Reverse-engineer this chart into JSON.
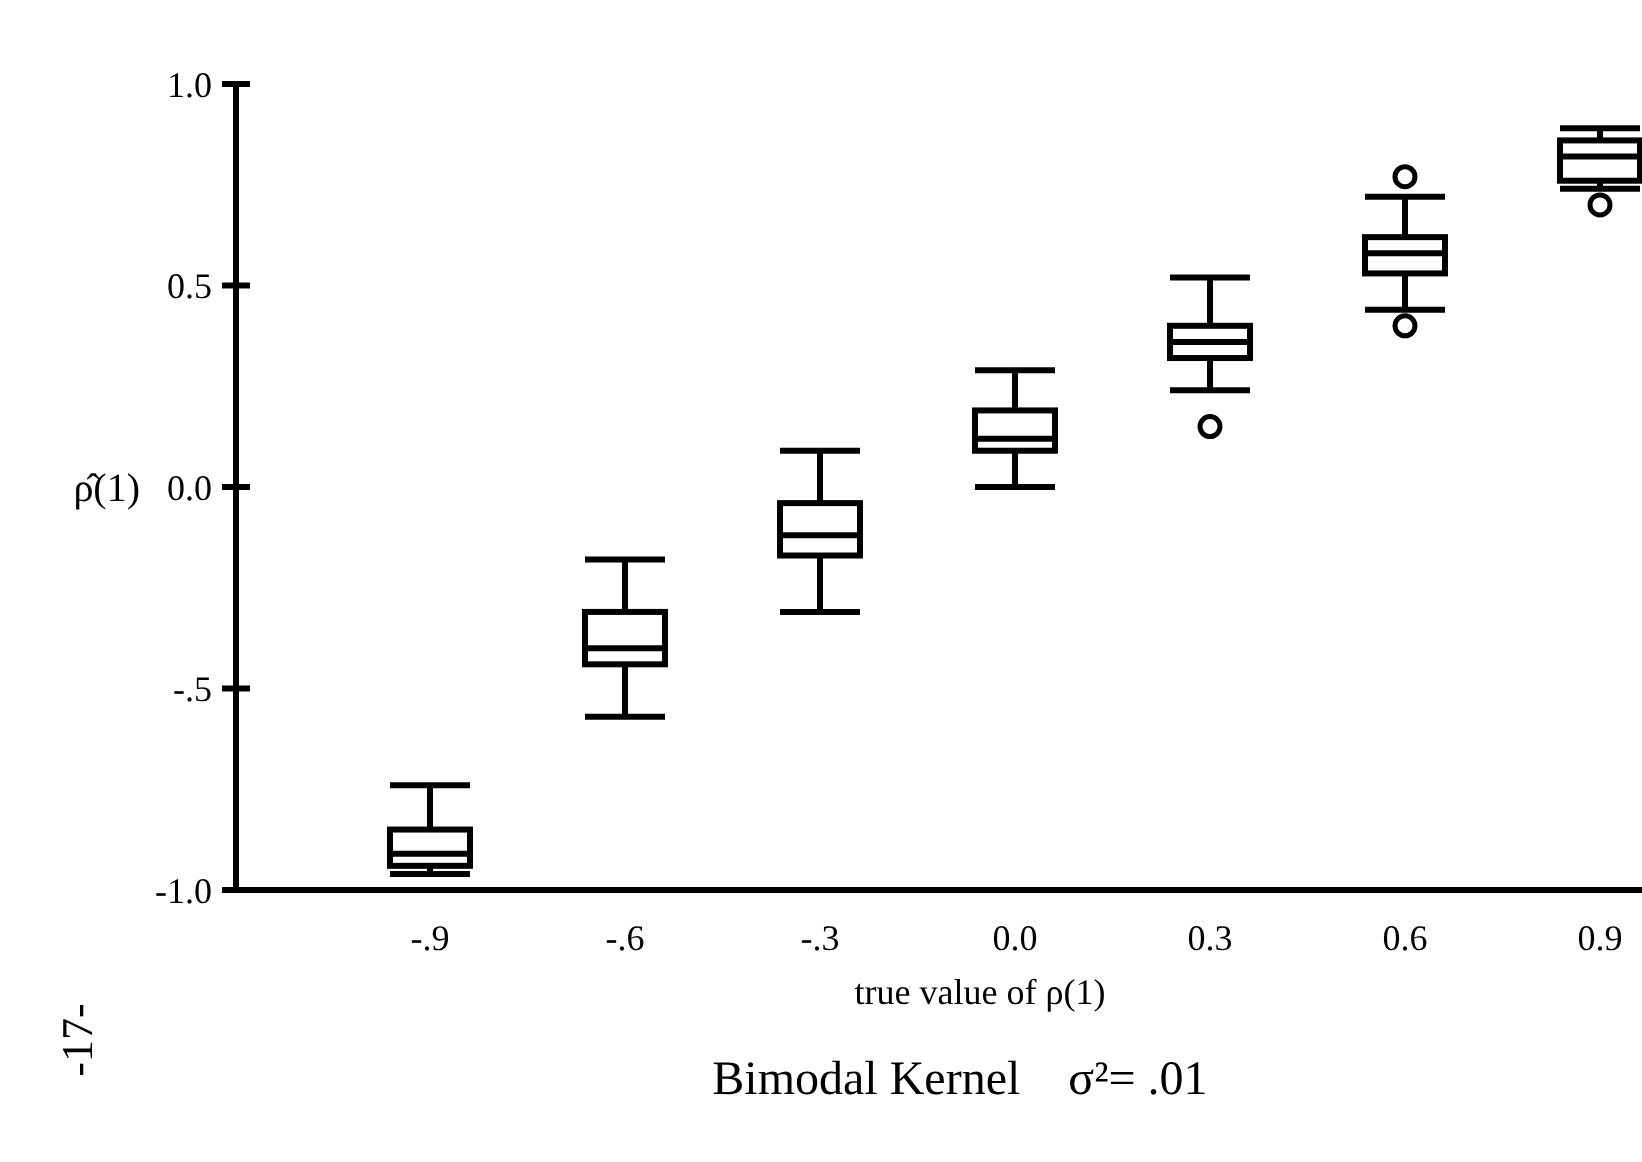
{
  "chart_data": {
    "type": "box",
    "title": "Bimodal Kernel    σ²= .01",
    "xlabel": "true value of ρ(1)",
    "ylabel": "ρ̂(1)",
    "categories": [
      "-.9",
      "-.6",
      "-.3",
      "0.0",
      "0.3",
      "0.6",
      "0.9"
    ],
    "boxes": [
      {
        "low": -0.96,
        "q1": -0.94,
        "median": -0.91,
        "q3": -0.85,
        "high": -0.74
      },
      {
        "low": -0.57,
        "q1": -0.44,
        "median": -0.4,
        "q3": -0.31,
        "high": -0.18
      },
      {
        "low": -0.31,
        "q1": -0.17,
        "median": -0.12,
        "q3": -0.04,
        "high": 0.09
      },
      {
        "low": 0.0,
        "q1": 0.09,
        "median": 0.12,
        "q3": 0.19,
        "high": 0.29
      },
      {
        "low": 0.24,
        "q1": 0.32,
        "median": 0.36,
        "q3": 0.4,
        "high": 0.52,
        "outliers": [
          0.15
        ]
      },
      {
        "low": 0.44,
        "q1": 0.53,
        "median": 0.58,
        "q3": 0.62,
        "high": 0.72,
        "outliers": [
          0.4,
          0.77
        ]
      },
      {
        "low": 0.74,
        "q1": 0.76,
        "median": 0.82,
        "q3": 0.86,
        "high": 0.89,
        "outliers": [
          0.7
        ]
      }
    ],
    "ylim": [
      -1,
      1
    ],
    "yticks": [
      {
        "value": 1,
        "label": "1.0"
      },
      {
        "value": 0.5,
        "label": "0.5"
      },
      {
        "value": 0,
        "label": "0.0"
      },
      {
        "value": -0.5,
        "label": "-.5"
      },
      {
        "value": -1,
        "label": "-1.0"
      }
    ],
    "annotations": [
      "-17-"
    ],
    "grid": false
  }
}
